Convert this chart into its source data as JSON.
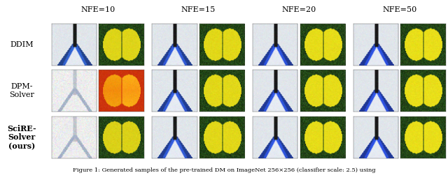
{
  "col_labels": [
    "NFE=10",
    "NFE=15",
    "NFE=20",
    "NFE=50"
  ],
  "row_labels": [
    "DDIM",
    "DPM-\nSolver",
    "SciRE-\nSolver\n(ours)"
  ],
  "caption": "Figure 1: Generated samples of the pre-trained DM on ImageNet 256×256 (classifier scale: 2.5) using",
  "background_color": "#ffffff",
  "fig_width": 6.4,
  "fig_height": 2.58,
  "dpi": 100,
  "label_fontsize": 8,
  "caption_fontsize": 6,
  "col_header_fontsize": 8
}
